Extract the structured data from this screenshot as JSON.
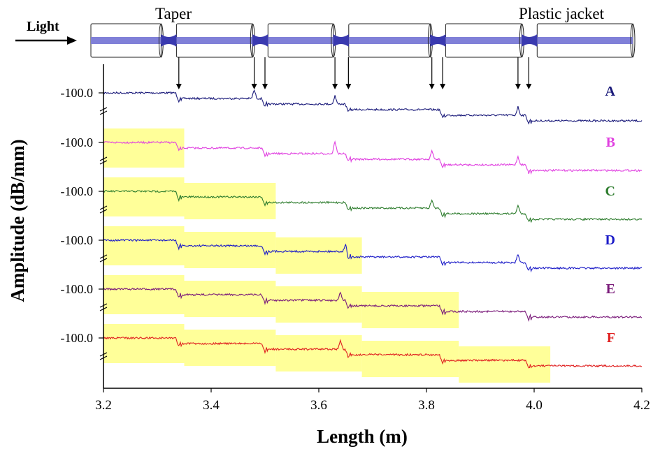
{
  "chart_data": {
    "type": "line",
    "xlabel": "Length (m)",
    "ylabel": "Amplitude (dB/mm)",
    "x_ticks": [
      "3.2",
      "3.4",
      "3.6",
      "3.8",
      "4.0",
      "4.2"
    ],
    "x_tick_values": [
      3.2,
      3.4,
      3.6,
      3.8,
      4.0,
      4.2
    ],
    "xlim": [
      3.2,
      4.2
    ],
    "series_ytick_label": "-100.0",
    "diagram": {
      "light_label": "Light",
      "taper_label": "Taper",
      "jacket_label": "Plastic jacket",
      "tapers_x": [
        3.32,
        3.49,
        3.64,
        3.82,
        3.99
      ]
    },
    "arrows_x": [
      3.34,
      3.48,
      3.5,
      3.63,
      3.655,
      3.81,
      3.83,
      3.97,
      3.99
    ],
    "series": [
      {
        "name": "A",
        "color": "#1a1a7a",
        "dips": [
          3.34,
          3.5,
          3.655,
          3.83,
          3.99
        ],
        "spikes": [
          3.48,
          3.63,
          3.97
        ],
        "highlight_end": null
      },
      {
        "name": "B",
        "color": "#e040e0",
        "dips": [
          3.34,
          3.5,
          3.655,
          3.83,
          3.99
        ],
        "spikes": [
          3.63,
          3.81,
          3.97
        ],
        "highlight_end": 3.35
      },
      {
        "name": "C",
        "color": "#2e7d2e",
        "dips": [
          3.34,
          3.5,
          3.655,
          3.83,
          3.99
        ],
        "spikes": [
          3.81,
          3.97
        ],
        "highlight_end": 3.52
      },
      {
        "name": "D",
        "color": "#1c1cc8",
        "dips": [
          3.34,
          3.5,
          3.655,
          3.83,
          3.99
        ],
        "spikes": [
          3.65,
          3.97
        ],
        "highlight_end": 3.68
      },
      {
        "name": "E",
        "color": "#7a1a7a",
        "dips": [
          3.34,
          3.5,
          3.655,
          3.83,
          3.99
        ],
        "spikes": [
          3.64
        ],
        "highlight_end": 3.86
      },
      {
        "name": "F",
        "color": "#e02020",
        "dips": [
          3.34,
          3.5,
          3.655,
          3.83,
          3.99
        ],
        "spikes": [
          3.64
        ],
        "highlight_end": 4.03
      }
    ],
    "grid": false,
    "legend": "right-of-each-trace"
  },
  "colors": {
    "fiber": "#8080d8",
    "fiber_text": "#2a2a9a",
    "highlight": "#ffff99"
  }
}
